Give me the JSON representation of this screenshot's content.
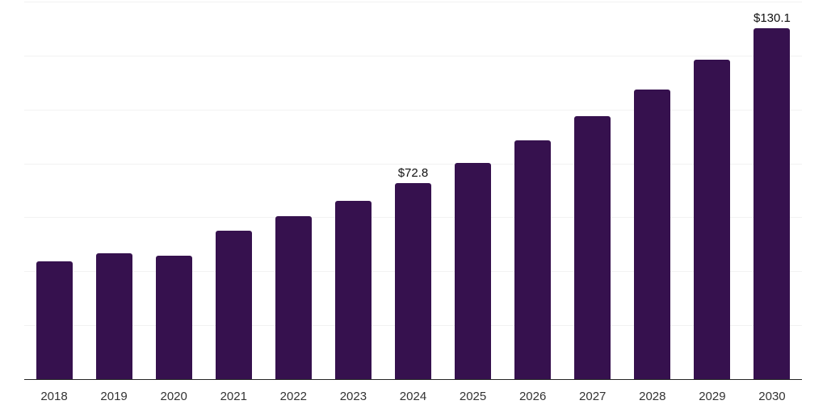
{
  "chart_data": {
    "type": "bar",
    "title": "",
    "xlabel": "",
    "ylabel": "",
    "categories": [
      "2018",
      "2019",
      "2020",
      "2021",
      "2022",
      "2023",
      "2024",
      "2025",
      "2026",
      "2027",
      "2028",
      "2029",
      "2030"
    ],
    "values": [
      43.7,
      46.7,
      45.9,
      55.0,
      60.4,
      66.1,
      72.8,
      80.2,
      88.5,
      97.4,
      107.3,
      118.5,
      130.1
    ],
    "data_labels": [
      "",
      "",
      "",
      "",
      "",
      "",
      "$72.8",
      "",
      "",
      "",
      "",
      "",
      "$130.1"
    ],
    "ylim": [
      0,
      140
    ],
    "grid": "horizontal",
    "grid_step": 20,
    "legend_position": "none",
    "colors": {
      "bar": "#36114e",
      "gridline": "#f2f2f2",
      "axis_line": "#262626",
      "tick_label": "#333333",
      "data_label": "#111111",
      "background": "#ffffff"
    }
  }
}
